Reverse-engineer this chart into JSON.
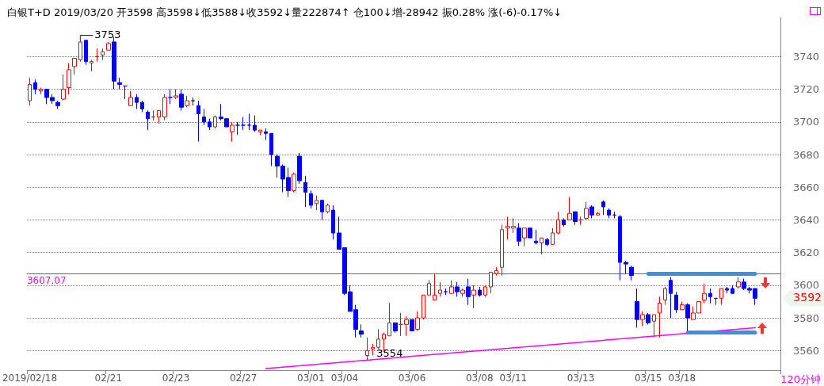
{
  "chart_data": {
    "type": "candlestick",
    "title": "白银T+D 2019/03/20 开3598 高3598↓低3588↓收3592↓量222874↑ 仓100↓增-28942 振0.28% 涨(-6)-0.17%↓",
    "categories": [
      "2019/02/18",
      null,
      null,
      null,
      null,
      null,
      null,
      null,
      null,
      null,
      null,
      null,
      null,
      null,
      "02/21",
      null,
      null,
      null,
      null,
      null,
      null,
      null,
      null,
      null,
      null,
      null,
      "02/23",
      null,
      null,
      null,
      null,
      null,
      null,
      null,
      null,
      null,
      null,
      null,
      "02/27",
      null,
      null,
      null,
      null,
      null,
      null,
      null,
      null,
      null,
      null,
      null,
      "03/01",
      null,
      null,
      null,
      null,
      null,
      "03/04",
      null,
      null,
      null,
      null,
      null,
      null,
      null,
      null,
      null,
      null,
      null,
      "03/06",
      null,
      null,
      null,
      null,
      null,
      null,
      null,
      null,
      null,
      null,
      null,
      "03/08",
      null,
      null,
      null,
      null,
      null,
      "03/11",
      null,
      null,
      null,
      null,
      null,
      null,
      null,
      null,
      null,
      null,
      null,
      "03/13",
      null,
      null,
      null,
      null,
      null,
      null,
      null,
      null,
      null,
      null,
      null,
      "03/15",
      null,
      null,
      null,
      null,
      null,
      "03/18",
      null,
      null,
      null,
      null,
      null,
      null,
      null,
      null,
      null,
      null,
      null,
      null,
      null
    ],
    "ohlc": [
      [
        3713,
        3727,
        3710,
        3723
      ],
      [
        3724,
        3726,
        3717,
        3720
      ],
      [
        3719,
        3721,
        3717,
        3720
      ],
      [
        3720,
        3720,
        3711,
        3715
      ],
      [
        3715,
        3717,
        3711,
        3713
      ],
      [
        3712,
        3713,
        3708,
        3710
      ],
      [
        3714,
        3729,
        3713,
        3720
      ],
      [
        3721,
        3736,
        3717,
        3732
      ],
      [
        3734,
        3739,
        3729,
        3739
      ],
      [
        3738,
        3753,
        3737,
        3749
      ],
      [
        3750,
        3750,
        3735,
        3737
      ],
      [
        3736,
        3738,
        3731,
        3737
      ],
      [
        3740,
        3745,
        3737,
        3740
      ],
      [
        3741,
        3745,
        3738,
        3743
      ],
      [
        3744,
        3749,
        3744,
        3748
      ],
      [
        3749,
        3752,
        3720,
        3725
      ],
      [
        3724,
        3727,
        3720,
        3723
      ],
      [
        3722,
        3722,
        3714,
        3722
      ],
      [
        3710,
        3719,
        3710,
        3715
      ],
      [
        3715,
        3717,
        3708,
        3712
      ],
      [
        3712,
        3713,
        3706,
        3708
      ],
      [
        3706,
        3707,
        3695,
        3702
      ],
      [
        3703,
        3707,
        3701,
        3703
      ],
      [
        3703,
        3707,
        3699,
        3707
      ],
      [
        3703,
        3717,
        3701,
        3715
      ],
      [
        3715,
        3720,
        3711,
        3715
      ],
      [
        3715,
        3720,
        3714,
        3716
      ],
      [
        3717,
        3720,
        3707,
        3709
      ],
      [
        3710,
        3716,
        3709,
        3713
      ],
      [
        3713,
        3715,
        3710,
        3713
      ],
      [
        3710,
        3713,
        3688,
        3705
      ],
      [
        3703,
        3708,
        3698,
        3700
      ],
      [
        3700,
        3702,
        3695,
        3697
      ],
      [
        3697,
        3704,
        3696,
        3703
      ],
      [
        3703,
        3711,
        3701,
        3702
      ],
      [
        3702,
        3702,
        3697,
        3697
      ],
      [
        3694,
        3700,
        3688,
        3698
      ],
      [
        3698,
        3700,
        3692,
        3698
      ],
      [
        3698,
        3703,
        3695,
        3698
      ],
      [
        3698,
        3705,
        3695,
        3698
      ],
      [
        3698,
        3704,
        3694,
        3695
      ],
      [
        3694,
        3695,
        3692,
        3695
      ],
      [
        3694,
        3696,
        3689,
        3693
      ],
      [
        3693,
        3693,
        3673,
        3680
      ],
      [
        3679,
        3680,
        3666,
        3673
      ],
      [
        3673,
        3674,
        3657,
        3665
      ],
      [
        3666,
        3672,
        3654,
        3658
      ],
      [
        3658,
        3669,
        3657,
        3668
      ],
      [
        3679,
        3681,
        3662,
        3664
      ],
      [
        3663,
        3667,
        3648,
        3657
      ],
      [
        3656,
        3658,
        3647,
        3649
      ],
      [
        3650,
        3655,
        3646,
        3652
      ],
      [
        3652,
        3652,
        3640,
        3645
      ],
      [
        3645,
        3650,
        3644,
        3649
      ],
      [
        3646,
        3649,
        3628,
        3632
      ],
      [
        3632,
        3642,
        3622,
        3622
      ],
      [
        3623,
        3623,
        3594,
        3595
      ],
      [
        3596,
        3600,
        3584,
        3584
      ],
      [
        3585,
        3588,
        3568,
        3573
      ],
      [
        3572,
        3576,
        3568,
        3570
      ],
      [
        3557,
        3568,
        3554,
        3560
      ],
      [
        3561,
        3564,
        3557,
        3562
      ],
      [
        3562,
        3573,
        3561,
        3567
      ],
      [
        3567,
        3571,
        3559,
        3570
      ],
      [
        3569,
        3589,
        3569,
        3577
      ],
      [
        3577,
        3577,
        3571,
        3572
      ],
      [
        3576,
        3583,
        3569,
        3576
      ],
      [
        3576,
        3581,
        3569,
        3579
      ],
      [
        3579,
        3579,
        3572,
        3572
      ],
      [
        3573,
        3584,
        3572,
        3580
      ],
      [
        3580,
        3594,
        3579,
        3594
      ],
      [
        3594,
        3603,
        3594,
        3601
      ],
      [
        3591,
        3607,
        3591,
        3594
      ],
      [
        3595,
        3602,
        3593,
        3597
      ],
      [
        3596,
        3598,
        3594,
        3596
      ],
      [
        3595,
        3603,
        3595,
        3599
      ],
      [
        3599,
        3602,
        3593,
        3596
      ],
      [
        3595,
        3598,
        3593,
        3597
      ],
      [
        3599,
        3604,
        3588,
        3593
      ],
      [
        3594,
        3600,
        3586,
        3597
      ],
      [
        3597,
        3599,
        3593,
        3594
      ],
      [
        3594,
        3600,
        3593,
        3599
      ],
      [
        3599,
        3608,
        3595,
        3608
      ],
      [
        3607,
        3611,
        3606,
        3609
      ],
      [
        3611,
        3637,
        3606,
        3634
      ],
      [
        3635,
        3642,
        3628,
        3636
      ],
      [
        3635,
        3641,
        3632,
        3636
      ],
      [
        3635,
        3638,
        3624,
        3627
      ],
      [
        3629,
        3635,
        3624,
        3635
      ],
      [
        3635,
        3635,
        3629,
        3629
      ],
      [
        3627,
        3634,
        3625,
        3626
      ],
      [
        3626,
        3629,
        3619,
        3629
      ],
      [
        3628,
        3629,
        3624,
        3625
      ],
      [
        3625,
        3635,
        3625,
        3632
      ],
      [
        3632,
        3645,
        3631,
        3640
      ],
      [
        3640,
        3641,
        3636,
        3637
      ],
      [
        3640,
        3654,
        3640,
        3644
      ],
      [
        3645,
        3645,
        3637,
        3639
      ],
      [
        3640,
        3642,
        3637,
        3640
      ],
      [
        3641,
        3651,
        3640,
        3647
      ],
      [
        3648,
        3649,
        3641,
        3643
      ],
      [
        3643,
        3645,
        3643,
        3644
      ],
      [
        3651,
        3652,
        3643,
        3648
      ],
      [
        3646,
        3647,
        3641,
        3643
      ],
      [
        3643,
        3645,
        3641,
        3643
      ],
      [
        3642,
        3643,
        3603,
        3614
      ],
      [
        3614,
        3615,
        3607,
        3613
      ],
      [
        3611,
        3612,
        3603,
        3606
      ],
      [
        3590,
        3598,
        3574,
        3579
      ],
      [
        3579,
        3584,
        3575,
        3582
      ],
      [
        3582,
        3583,
        3576,
        3577
      ],
      [
        3578,
        3582,
        3568,
        3582
      ],
      [
        3583,
        3593,
        3568,
        3589
      ],
      [
        3591,
        3599,
        3588,
        3598
      ],
      [
        3603,
        3605,
        3580,
        3595
      ],
      [
        3594,
        3596,
        3583,
        3585
      ],
      [
        3585,
        3590,
        3585,
        3588
      ],
      [
        3588,
        3589,
        3572,
        3580
      ],
      [
        3579,
        3587,
        3579,
        3583
      ],
      [
        3583,
        3590,
        3583,
        3590
      ],
      [
        3591,
        3601,
        3589,
        3595
      ],
      [
        3595,
        3598,
        3589,
        3593
      ],
      [
        3592,
        3592,
        3588,
        3592
      ],
      [
        3592,
        3598,
        3588,
        3598
      ],
      [
        3598,
        3599,
        3595,
        3597
      ],
      [
        3598,
        3600,
        3595,
        3595
      ],
      [
        3599,
        3605,
        3598,
        3602
      ],
      [
        3602,
        3604,
        3597,
        3598
      ],
      [
        3598,
        3599,
        3595,
        3597
      ],
      [
        3598,
        3598,
        3588,
        3592
      ]
    ],
    "colors": [
      "#ff0000",
      "#0000ff",
      "#ff0000",
      "#0000ff",
      "#0000ff",
      "#0000ff",
      "#ff0000",
      "#ff0000",
      "#ff0000",
      "#ff0000",
      "#0000ff",
      "#ff0000",
      "#ff0000",
      "#ff0000",
      "#ff0000",
      "#0000ff",
      "#0000ff",
      "#0000ff",
      "#ff0000",
      "#0000ff",
      "#0000ff",
      "#0000ff",
      "#ff0000",
      "#ff0000",
      "#ff0000",
      "#0000ff",
      "#ff0000",
      "#0000ff",
      "#ff0000",
      "#0000ff",
      "#0000ff",
      "#0000ff",
      "#0000ff",
      "#ff0000",
      "#0000ff",
      "#0000ff",
      "#ff0000",
      "#0000ff",
      "#0000ff",
      "#0000ff",
      "#0000ff",
      "#ff0000",
      "#0000ff",
      "#0000ff",
      "#0000ff",
      "#0000ff",
      "#0000ff",
      "#ff0000",
      "#0000ff",
      "#0000ff",
      "#0000ff",
      "#ff0000",
      "#0000ff",
      "#ff0000",
      "#0000ff",
      "#0000ff",
      "#0000ff",
      "#0000ff",
      "#0000ff",
      "#0000ff",
      "#ff0000",
      "#ff0000",
      "#ff0000",
      "#ff0000",
      "#ff0000",
      "#0000ff",
      "#ff0000",
      "#ff0000",
      "#0000ff",
      "#ff0000",
      "#ff0000",
      "#ff0000",
      "#ff0000",
      "#ff0000",
      "#0000ff",
      "#ff0000",
      "#0000ff",
      "#ff0000",
      "#0000ff",
      "#ff0000",
      "#0000ff",
      "#ff0000",
      "#ff0000",
      "#ff0000",
      "#ff0000",
      "#ff0000",
      "#ff0000",
      "#0000ff",
      "#ff0000",
      "#0000ff",
      "#0000ff",
      "#ff0000",
      "#0000ff",
      "#ff0000",
      "#ff0000",
      "#0000ff",
      "#ff0000",
      "#0000ff",
      "#ff0000",
      "#ff0000",
      "#0000ff",
      "#ff0000",
      "#0000ff",
      "#0000ff",
      "#0000ff",
      "#0000ff",
      "#0000ff",
      "#0000ff",
      "#0000ff",
      "#ff0000",
      "#0000ff",
      "#ff0000",
      "#ff0000",
      "#ff0000",
      "#0000ff",
      "#0000ff",
      "#ff0000",
      "#0000ff",
      "#ff0000",
      "#ff0000",
      "#ff0000",
      "#0000ff",
      "#0000ff",
      "#ff0000",
      "#0000ff",
      "#0000ff",
      "#ff0000",
      "#0000ff",
      "#0000ff",
      "#0000ff"
    ],
    "series": [
      {
        "type": "line",
        "color": "#ff00ff",
        "values": [
          null,
          null,
          null,
          null,
          null,
          null,
          null,
          null,
          null,
          null,
          null,
          null,
          null,
          null,
          null,
          null,
          null,
          null,
          null,
          null,
          null,
          null,
          null,
          null,
          null,
          null,
          null,
          null,
          null,
          null,
          null,
          null,
          null,
          null,
          null,
          null,
          null,
          null,
          null,
          null,
          null,
          null,
          3549,
          null,
          null,
          null,
          null,
          null,
          null,
          null,
          null,
          null,
          null,
          null,
          null,
          null,
          null,
          null,
          null,
          null,
          null,
          null,
          null,
          null,
          null,
          null,
          null,
          null,
          null,
          null,
          null,
          null,
          null,
          null,
          null,
          null,
          null,
          null,
          null,
          null,
          null,
          null,
          null,
          null,
          null,
          null,
          null,
          null,
          null,
          null,
          null,
          null,
          null,
          null,
          null,
          null,
          null,
          null,
          null,
          null,
          null,
          null,
          null,
          null,
          null,
          null,
          null,
          null,
          null,
          null,
          null,
          null,
          null,
          null,
          null,
          null,
          null,
          null,
          null,
          null,
          null,
          null,
          null,
          null,
          null,
          null,
          null,
          null,
          null,
          3574
        ]
      },
      {
        "type": "line",
        "color": "#3d8fdf",
        "values": [
          null,
          null,
          null,
          null,
          null,
          null,
          null,
          null,
          null,
          null,
          null,
          null,
          null,
          null,
          null,
          null,
          null,
          null,
          null,
          null,
          null,
          null,
          null,
          null,
          null,
          null,
          null,
          null,
          null,
          null,
          null,
          null,
          null,
          null,
          null,
          null,
          null,
          null,
          null,
          null,
          null,
          null,
          null,
          null,
          null,
          null,
          null,
          null,
          null,
          null,
          null,
          null,
          null,
          null,
          null,
          null,
          null,
          null,
          null,
          null,
          null,
          null,
          null,
          null,
          null,
          null,
          null,
          null,
          null,
          null,
          null,
          null,
          null,
          null,
          null,
          null,
          null,
          null,
          null,
          null,
          null,
          null,
          null,
          null,
          null,
          null,
          null,
          null,
          null,
          null,
          null,
          null,
          null,
          null,
          null,
          null,
          null,
          null,
          null,
          null,
          null,
          null,
          null,
          null,
          null,
          null,
          null,
          null,
          null,
          null,
          3607,
          null,
          null,
          null,
          null,
          null,
          null,
          null,
          null,
          null,
          null,
          null,
          null,
          null,
          null,
          null,
          null,
          null,
          null,
          3607
        ]
      },
      {
        "type": "line",
        "color": "#3d8fdf",
        "values": [
          null,
          null,
          null,
          null,
          null,
          null,
          null,
          null,
          null,
          null,
          null,
          null,
          null,
          null,
          null,
          null,
          null,
          null,
          null,
          null,
          null,
          null,
          null,
          null,
          null,
          null,
          null,
          null,
          null,
          null,
          null,
          null,
          null,
          null,
          null,
          null,
          null,
          null,
          null,
          null,
          null,
          null,
          null,
          null,
          null,
          null,
          null,
          null,
          null,
          null,
          null,
          null,
          null,
          null,
          null,
          null,
          null,
          null,
          null,
          null,
          null,
          null,
          null,
          null,
          null,
          null,
          null,
          null,
          null,
          null,
          null,
          null,
          null,
          null,
          null,
          null,
          null,
          null,
          null,
          null,
          null,
          null,
          null,
          null,
          null,
          null,
          null,
          null,
          null,
          null,
          null,
          null,
          null,
          null,
          null,
          null,
          null,
          null,
          null,
          null,
          null,
          null,
          null,
          null,
          null,
          null,
          null,
          null,
          null,
          null,
          null,
          null,
          null,
          null,
          null,
          null,
          null,
          3571,
          null,
          null,
          null,
          null,
          null,
          null,
          null,
          null,
          null,
          null,
          null,
          3571
        ]
      }
    ],
    "ylim": [
      3548,
      3764
    ],
    "yticks": [
      3560,
      3580,
      3600,
      3620,
      3640,
      3660,
      3680,
      3700,
      3720,
      3740
    ],
    "grid": "y",
    "ref_lines": [
      {
        "axis": "y",
        "value": 3607.07,
        "label": "3607.07",
        "color": "#ff00ff",
        "line_style": "solid"
      }
    ],
    "annotations": [
      "3753",
      "3554",
      "3592",
      "120分钟"
    ]
  }
}
